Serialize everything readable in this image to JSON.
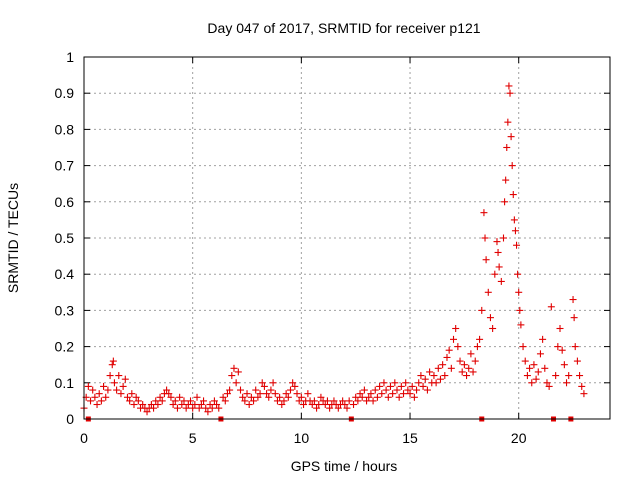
{
  "chart_data": {
    "type": "scatter",
    "title": "Day 047 of 2017, SRMTID for receiver p121",
    "xlabel": "GPS time / hours",
    "ylabel": "SRMTID / TECUs",
    "xlim": [
      0,
      24.2
    ],
    "ylim": [
      0,
      1
    ],
    "xticks": [
      "0",
      "5",
      "10",
      "15",
      "20"
    ],
    "yticks": [
      "0",
      "0.1",
      "0.2",
      "0.3",
      "0.4",
      "0.5",
      "0.6",
      "0.7",
      "0.8",
      "0.9",
      "1"
    ],
    "grid": true,
    "marker": "plus",
    "color": "#e00000",
    "baseline_markers_x": [
      0.2,
      6.3,
      12.3,
      18.3,
      21.6,
      22.4
    ],
    "series": [
      {
        "points": [
          [
            0.0,
            0.03
          ],
          [
            0.1,
            0.06
          ],
          [
            0.2,
            0.09
          ],
          [
            0.3,
            0.05
          ],
          [
            0.4,
            0.08
          ],
          [
            0.5,
            0.06
          ],
          [
            0.6,
            0.04
          ],
          [
            0.7,
            0.07
          ],
          [
            0.8,
            0.05
          ],
          [
            0.9,
            0.09
          ],
          [
            1.0,
            0.06
          ],
          [
            1.1,
            0.08
          ],
          [
            1.2,
            0.12
          ],
          [
            1.3,
            0.15
          ],
          [
            1.35,
            0.16
          ],
          [
            1.4,
            0.1
          ],
          [
            1.5,
            0.08
          ],
          [
            1.6,
            0.12
          ],
          [
            1.7,
            0.07
          ],
          [
            1.8,
            0.09
          ],
          [
            1.9,
            0.11
          ],
          [
            2.0,
            0.06
          ],
          [
            2.1,
            0.05
          ],
          [
            2.2,
            0.07
          ],
          [
            2.3,
            0.04
          ],
          [
            2.4,
            0.06
          ],
          [
            2.5,
            0.05
          ],
          [
            2.6,
            0.03
          ],
          [
            2.7,
            0.04
          ],
          [
            2.8,
            0.03
          ],
          [
            2.9,
            0.02
          ],
          [
            3.0,
            0.03
          ],
          [
            3.1,
            0.04
          ],
          [
            3.2,
            0.03
          ],
          [
            3.3,
            0.05
          ],
          [
            3.4,
            0.04
          ],
          [
            3.5,
            0.06
          ],
          [
            3.6,
            0.05
          ],
          [
            3.7,
            0.07
          ],
          [
            3.8,
            0.08
          ],
          [
            3.9,
            0.07
          ],
          [
            4.0,
            0.06
          ],
          [
            4.1,
            0.04
          ],
          [
            4.2,
            0.05
          ],
          [
            4.3,
            0.03
          ],
          [
            4.4,
            0.06
          ],
          [
            4.5,
            0.04
          ],
          [
            4.6,
            0.05
          ],
          [
            4.7,
            0.03
          ],
          [
            4.8,
            0.04
          ],
          [
            4.9,
            0.05
          ],
          [
            5.0,
            0.03
          ],
          [
            5.1,
            0.04
          ],
          [
            5.2,
            0.06
          ],
          [
            5.3,
            0.03
          ],
          [
            5.4,
            0.04
          ],
          [
            5.5,
            0.05
          ],
          [
            5.6,
            0.03
          ],
          [
            5.7,
            0.02
          ],
          [
            5.8,
            0.04
          ],
          [
            5.9,
            0.03
          ],
          [
            6.0,
            0.05
          ],
          [
            6.1,
            0.04
          ],
          [
            6.2,
            0.03
          ],
          [
            6.4,
            0.06
          ],
          [
            6.5,
            0.05
          ],
          [
            6.6,
            0.07
          ],
          [
            6.7,
            0.08
          ],
          [
            6.8,
            0.12
          ],
          [
            6.9,
            0.14
          ],
          [
            7.0,
            0.1
          ],
          [
            7.1,
            0.13
          ],
          [
            7.2,
            0.08
          ],
          [
            7.3,
            0.06
          ],
          [
            7.4,
            0.05
          ],
          [
            7.5,
            0.07
          ],
          [
            7.6,
            0.04
          ],
          [
            7.7,
            0.06
          ],
          [
            7.8,
            0.05
          ],
          [
            7.9,
            0.08
          ],
          [
            8.0,
            0.06
          ],
          [
            8.1,
            0.07
          ],
          [
            8.2,
            0.1
          ],
          [
            8.3,
            0.09
          ],
          [
            8.4,
            0.07
          ],
          [
            8.5,
            0.06
          ],
          [
            8.6,
            0.08
          ],
          [
            8.7,
            0.1
          ],
          [
            8.8,
            0.07
          ],
          [
            8.9,
            0.05
          ],
          [
            9.0,
            0.06
          ],
          [
            9.1,
            0.04
          ],
          [
            9.2,
            0.05
          ],
          [
            9.3,
            0.07
          ],
          [
            9.4,
            0.06
          ],
          [
            9.5,
            0.08
          ],
          [
            9.6,
            0.1
          ],
          [
            9.7,
            0.09
          ],
          [
            9.8,
            0.07
          ],
          [
            9.9,
            0.05
          ],
          [
            10.0,
            0.06
          ],
          [
            10.1,
            0.04
          ],
          [
            10.2,
            0.05
          ],
          [
            10.3,
            0.07
          ],
          [
            10.4,
            0.05
          ],
          [
            10.5,
            0.04
          ],
          [
            10.6,
            0.05
          ],
          [
            10.7,
            0.03
          ],
          [
            10.8,
            0.04
          ],
          [
            10.9,
            0.06
          ],
          [
            11.0,
            0.05
          ],
          [
            11.1,
            0.04
          ],
          [
            11.2,
            0.05
          ],
          [
            11.3,
            0.03
          ],
          [
            11.4,
            0.04
          ],
          [
            11.5,
            0.05
          ],
          [
            11.6,
            0.04
          ],
          [
            11.7,
            0.03
          ],
          [
            11.8,
            0.04
          ],
          [
            11.9,
            0.05
          ],
          [
            12.0,
            0.04
          ],
          [
            12.1,
            0.03
          ],
          [
            12.2,
            0.05
          ],
          [
            12.4,
            0.04
          ],
          [
            12.5,
            0.06
          ],
          [
            12.6,
            0.05
          ],
          [
            12.7,
            0.07
          ],
          [
            12.8,
            0.06
          ],
          [
            12.9,
            0.08
          ],
          [
            13.0,
            0.05
          ],
          [
            13.1,
            0.06
          ],
          [
            13.2,
            0.07
          ],
          [
            13.3,
            0.05
          ],
          [
            13.4,
            0.08
          ],
          [
            13.5,
            0.06
          ],
          [
            13.6,
            0.09
          ],
          [
            13.7,
            0.07
          ],
          [
            13.8,
            0.1
          ],
          [
            13.9,
            0.08
          ],
          [
            14.0,
            0.06
          ],
          [
            14.1,
            0.09
          ],
          [
            14.2,
            0.07
          ],
          [
            14.3,
            0.1
          ],
          [
            14.4,
            0.08
          ],
          [
            14.5,
            0.06
          ],
          [
            14.6,
            0.09
          ],
          [
            14.7,
            0.07
          ],
          [
            14.8,
            0.1
          ],
          [
            14.9,
            0.08
          ],
          [
            15.0,
            0.07
          ],
          [
            15.1,
            0.09
          ],
          [
            15.2,
            0.06
          ],
          [
            15.3,
            0.08
          ],
          [
            15.4,
            0.1
          ],
          [
            15.5,
            0.12
          ],
          [
            15.6,
            0.09
          ],
          [
            15.7,
            0.11
          ],
          [
            15.8,
            0.08
          ],
          [
            15.9,
            0.13
          ],
          [
            16.0,
            0.1
          ],
          [
            16.1,
            0.12
          ],
          [
            16.2,
            0.1
          ],
          [
            16.3,
            0.14
          ],
          [
            16.4,
            0.11
          ],
          [
            16.5,
            0.15
          ],
          [
            16.6,
            0.12
          ],
          [
            16.7,
            0.17
          ],
          [
            16.8,
            0.19
          ],
          [
            16.9,
            0.14
          ],
          [
            17.0,
            0.22
          ],
          [
            17.1,
            0.25
          ],
          [
            17.2,
            0.2
          ],
          [
            17.3,
            0.16
          ],
          [
            17.4,
            0.13
          ],
          [
            17.5,
            0.15
          ],
          [
            17.6,
            0.12
          ],
          [
            17.7,
            0.14
          ],
          [
            17.8,
            0.18
          ],
          [
            17.9,
            0.13
          ],
          [
            18.0,
            0.16
          ],
          [
            18.1,
            0.2
          ],
          [
            18.2,
            0.22
          ],
          [
            18.3,
            0.3
          ],
          [
            18.4,
            0.57
          ],
          [
            18.45,
            0.5
          ],
          [
            18.5,
            0.44
          ],
          [
            18.6,
            0.35
          ],
          [
            18.7,
            0.28
          ],
          [
            18.8,
            0.25
          ],
          [
            18.9,
            0.4
          ],
          [
            19.0,
            0.49
          ],
          [
            19.05,
            0.46
          ],
          [
            19.1,
            0.42
          ],
          [
            19.2,
            0.38
          ],
          [
            19.3,
            0.5
          ],
          [
            19.35,
            0.6
          ],
          [
            19.4,
            0.66
          ],
          [
            19.45,
            0.75
          ],
          [
            19.5,
            0.82
          ],
          [
            19.55,
            0.92
          ],
          [
            19.6,
            0.9
          ],
          [
            19.65,
            0.78
          ],
          [
            19.7,
            0.7
          ],
          [
            19.75,
            0.62
          ],
          [
            19.8,
            0.55
          ],
          [
            19.85,
            0.52
          ],
          [
            19.9,
            0.48
          ],
          [
            19.95,
            0.4
          ],
          [
            20.0,
            0.35
          ],
          [
            20.05,
            0.3
          ],
          [
            20.1,
            0.26
          ],
          [
            20.2,
            0.2
          ],
          [
            20.3,
            0.16
          ],
          [
            20.4,
            0.12
          ],
          [
            20.5,
            0.14
          ],
          [
            20.6,
            0.1
          ],
          [
            20.7,
            0.15
          ],
          [
            20.8,
            0.11
          ],
          [
            20.9,
            0.13
          ],
          [
            21.0,
            0.18
          ],
          [
            21.1,
            0.22
          ],
          [
            21.2,
            0.14
          ],
          [
            21.3,
            0.1
          ],
          [
            21.4,
            0.09
          ],
          [
            21.5,
            0.31
          ],
          [
            21.7,
            0.12
          ],
          [
            21.8,
            0.2
          ],
          [
            21.9,
            0.25
          ],
          [
            22.0,
            0.19
          ],
          [
            22.1,
            0.15
          ],
          [
            22.2,
            0.1
          ],
          [
            22.3,
            0.12
          ],
          [
            22.5,
            0.33
          ],
          [
            22.55,
            0.28
          ],
          [
            22.6,
            0.2
          ],
          [
            22.7,
            0.16
          ],
          [
            22.8,
            0.12
          ],
          [
            22.9,
            0.09
          ],
          [
            23.0,
            0.07
          ]
        ]
      }
    ]
  }
}
